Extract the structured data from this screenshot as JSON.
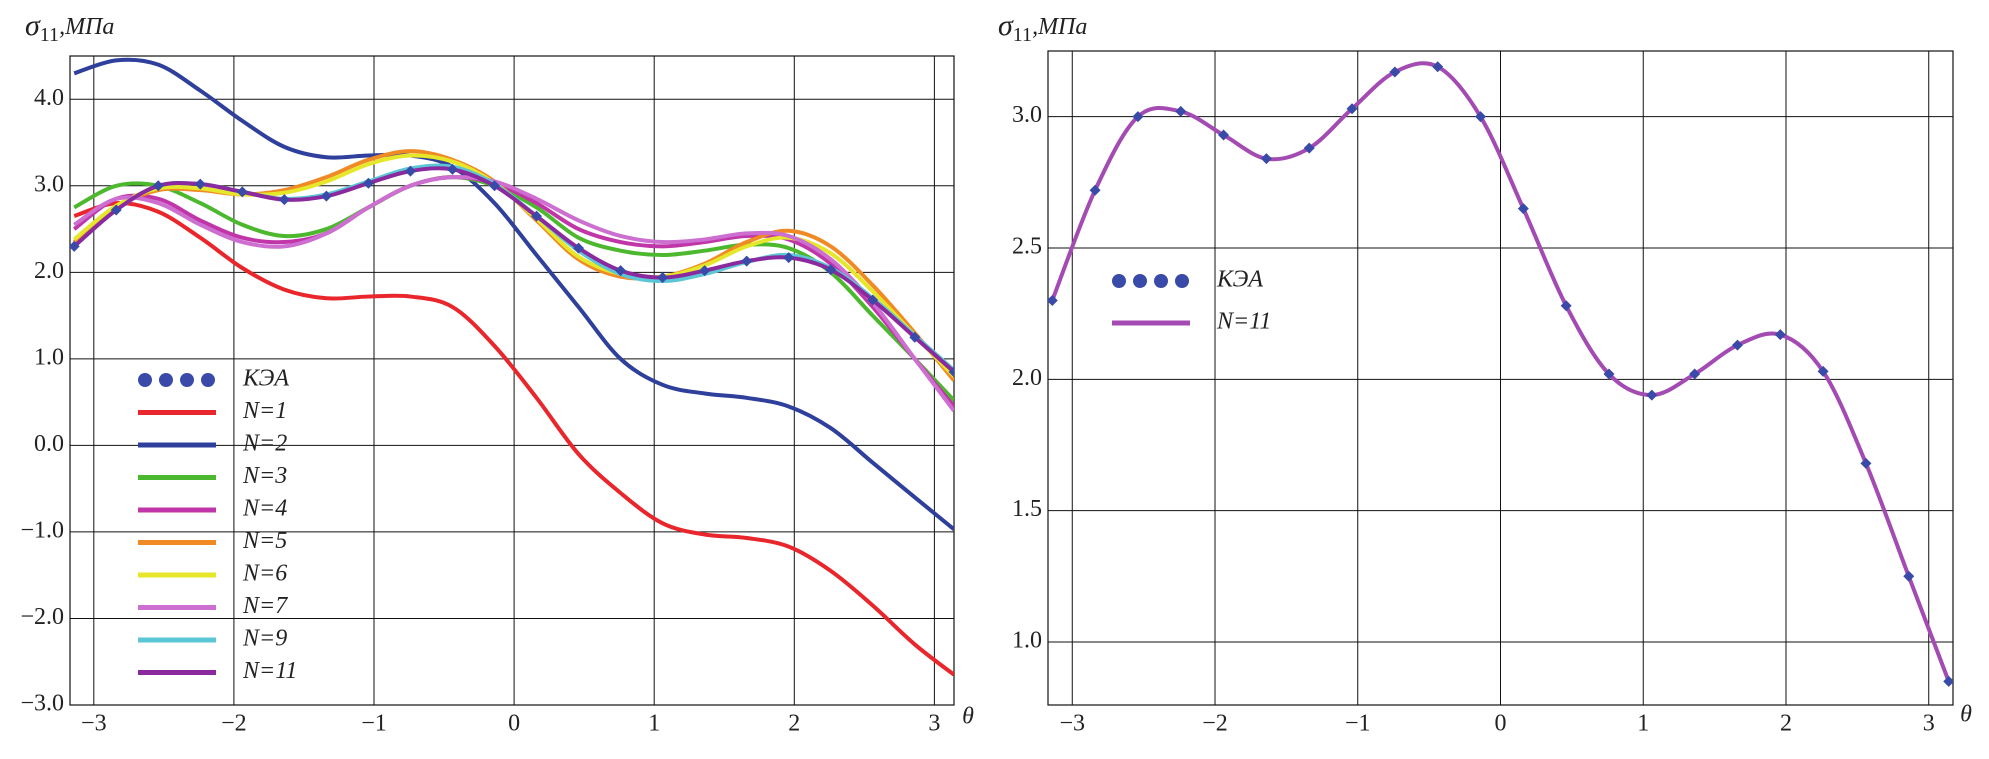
{
  "chart_data": [
    {
      "type": "line",
      "ylabel": [
        "σ",
        "11",
        ",МПа"
      ],
      "xlabel": "θ",
      "x": [
        -3.14,
        -2.84,
        -2.54,
        -2.24,
        -1.94,
        -1.64,
        -1.34,
        -1.04,
        -0.74,
        -0.44,
        -0.14,
        0.16,
        0.46,
        0.76,
        1.06,
        1.36,
        1.66,
        1.96,
        2.26,
        2.56,
        2.86,
        3.14
      ],
      "series": [
        {
          "name": "N=1",
          "color": "#e8262b",
          "style": "line",
          "values": [
            2.65,
            2.8,
            2.7,
            2.4,
            2.05,
            1.8,
            1.7,
            1.72,
            1.72,
            1.6,
            1.15,
            0.55,
            -0.1,
            -0.55,
            -0.9,
            -1.03,
            -1.07,
            -1.17,
            -1.45,
            -1.85,
            -2.3,
            -2.65
          ]
        },
        {
          "name": "N=2",
          "color": "#2e3f9c",
          "style": "line",
          "values": [
            4.3,
            4.45,
            4.4,
            4.1,
            3.75,
            3.45,
            3.33,
            3.35,
            3.35,
            3.22,
            2.8,
            2.2,
            1.6,
            1.0,
            0.7,
            0.6,
            0.55,
            0.45,
            0.2,
            -0.2,
            -0.6,
            -0.97
          ]
        },
        {
          "name": "N=3",
          "color": "#4cb82e",
          "style": "line",
          "values": [
            2.75,
            3.0,
            3.0,
            2.8,
            2.55,
            2.42,
            2.5,
            2.75,
            3.0,
            3.1,
            3.0,
            2.75,
            2.4,
            2.25,
            2.2,
            2.25,
            2.32,
            2.28,
            2.0,
            1.5,
            1.0,
            0.52
          ]
        },
        {
          "name": "N=4",
          "color": "#c036a8",
          "style": "line",
          "values": [
            2.5,
            2.85,
            2.85,
            2.6,
            2.4,
            2.35,
            2.45,
            2.75,
            3.0,
            3.1,
            3.03,
            2.8,
            2.5,
            2.35,
            2.3,
            2.35,
            2.42,
            2.38,
            2.1,
            1.6,
            1.0,
            0.45
          ]
        },
        {
          "name": "N=5",
          "color": "#f08a24",
          "style": "line",
          "values": [
            2.35,
            2.75,
            2.95,
            2.95,
            2.9,
            2.95,
            3.1,
            3.3,
            3.4,
            3.3,
            3.05,
            2.6,
            2.15,
            1.95,
            1.95,
            2.1,
            2.35,
            2.48,
            2.3,
            1.85,
            1.3,
            0.75
          ]
        },
        {
          "name": "N=6",
          "color": "#e6e62a",
          "style": "line",
          "values": [
            2.38,
            2.77,
            2.97,
            2.97,
            2.9,
            2.92,
            3.05,
            3.25,
            3.35,
            3.28,
            3.03,
            2.62,
            2.18,
            1.98,
            1.95,
            2.08,
            2.3,
            2.4,
            2.22,
            1.78,
            1.27,
            0.8
          ]
        },
        {
          "name": "N=7",
          "color": "#cc6fd0",
          "style": "line",
          "values": [
            2.55,
            2.85,
            2.8,
            2.55,
            2.35,
            2.3,
            2.45,
            2.75,
            3.0,
            3.1,
            3.05,
            2.85,
            2.6,
            2.42,
            2.35,
            2.38,
            2.45,
            2.42,
            2.15,
            1.65,
            1.0,
            0.4
          ]
        },
        {
          "name": "N=9",
          "color": "#5bc6d6",
          "style": "line",
          "values": [
            2.3,
            2.72,
            3.0,
            3.02,
            2.93,
            2.85,
            2.9,
            3.05,
            3.2,
            3.22,
            3.02,
            2.65,
            2.25,
            1.98,
            1.9,
            1.98,
            2.12,
            2.2,
            2.05,
            1.7,
            1.27,
            0.87
          ]
        },
        {
          "name": "N=11",
          "color": "#8b2a9e",
          "style": "line",
          "values": [
            2.3,
            2.72,
            3.0,
            3.02,
            2.93,
            2.84,
            2.88,
            3.03,
            3.17,
            3.19,
            3.0,
            2.65,
            2.28,
            2.02,
            1.94,
            2.02,
            2.13,
            2.17,
            2.03,
            1.68,
            1.25,
            0.85
          ]
        },
        {
          "name": "КЭА",
          "color": "#3a4aa8",
          "style": "dots",
          "values": [
            2.3,
            2.72,
            3.0,
            3.02,
            2.93,
            2.84,
            2.88,
            3.03,
            3.17,
            3.19,
            3.0,
            2.65,
            2.28,
            2.02,
            1.94,
            2.02,
            2.13,
            2.17,
            2.03,
            1.68,
            1.25,
            0.85
          ]
        }
      ],
      "xlim": [
        -3.17,
        3.14
      ],
      "ylim": [
        -3.0,
        4.5
      ],
      "xticks": [
        {
          "value": -3,
          "label": "−3"
        },
        {
          "value": -2,
          "label": "−2"
        },
        {
          "value": -1,
          "label": "−1"
        },
        0,
        1,
        2,
        3
      ],
      "yticks": [
        {
          "value": -3,
          "label": "−3.0"
        },
        {
          "value": -2,
          "label": "−2.0"
        },
        {
          "value": -1,
          "label": "−1.0"
        },
        {
          "value": 0,
          "label": "0.0"
        },
        {
          "value": 1,
          "label": "1.0"
        },
        {
          "value": 2,
          "label": "2.0"
        },
        {
          "value": 3,
          "label": "3.0"
        },
        {
          "value": 4,
          "label": "4.0"
        }
      ],
      "grid": true,
      "legend": "lower left"
    },
    {
      "type": "line",
      "ylabel": [
        "σ",
        "11",
        ",МПа"
      ],
      "xlabel": "θ",
      "x": [
        -3.14,
        -2.84,
        -2.54,
        -2.24,
        -1.94,
        -1.64,
        -1.34,
        -1.04,
        -0.74,
        -0.44,
        -0.14,
        0.16,
        0.46,
        0.76,
        1.06,
        1.36,
        1.66,
        1.96,
        2.26,
        2.56,
        2.86,
        3.14
      ],
      "series": [
        {
          "name": "N=11",
          "color": "#a34bb3",
          "style": "line",
          "values": [
            2.3,
            2.72,
            3.0,
            3.02,
            2.93,
            2.84,
            2.88,
            3.03,
            3.17,
            3.19,
            3.0,
            2.65,
            2.28,
            2.02,
            1.94,
            2.02,
            2.13,
            2.17,
            2.03,
            1.68,
            1.25,
            0.85
          ]
        },
        {
          "name": "КЭА",
          "color": "#3a4aa8",
          "style": "dots",
          "values": [
            2.3,
            2.72,
            3.0,
            3.02,
            2.93,
            2.84,
            2.88,
            3.03,
            3.17,
            3.19,
            3.0,
            2.65,
            2.28,
            2.02,
            1.94,
            2.02,
            2.13,
            2.17,
            2.03,
            1.68,
            1.25,
            0.85
          ]
        }
      ],
      "xlim": [
        -3.17,
        3.17
      ],
      "ylim": [
        0.76,
        3.25
      ],
      "xticks": [
        {
          "value": -3,
          "label": "−3"
        },
        {
          "value": -2,
          "label": "−2"
        },
        {
          "value": -1,
          "label": "−1"
        },
        0,
        1,
        2,
        3
      ],
      "yticks": [
        {
          "value": 1,
          "label": "1.0"
        },
        {
          "value": 1.5,
          "label": "1.5"
        },
        {
          "value": 2,
          "label": "2.0"
        },
        {
          "value": 2.5,
          "label": "2.5"
        },
        {
          "value": 3,
          "label": "3.0"
        }
      ],
      "grid": true,
      "legend": "center left"
    }
  ]
}
